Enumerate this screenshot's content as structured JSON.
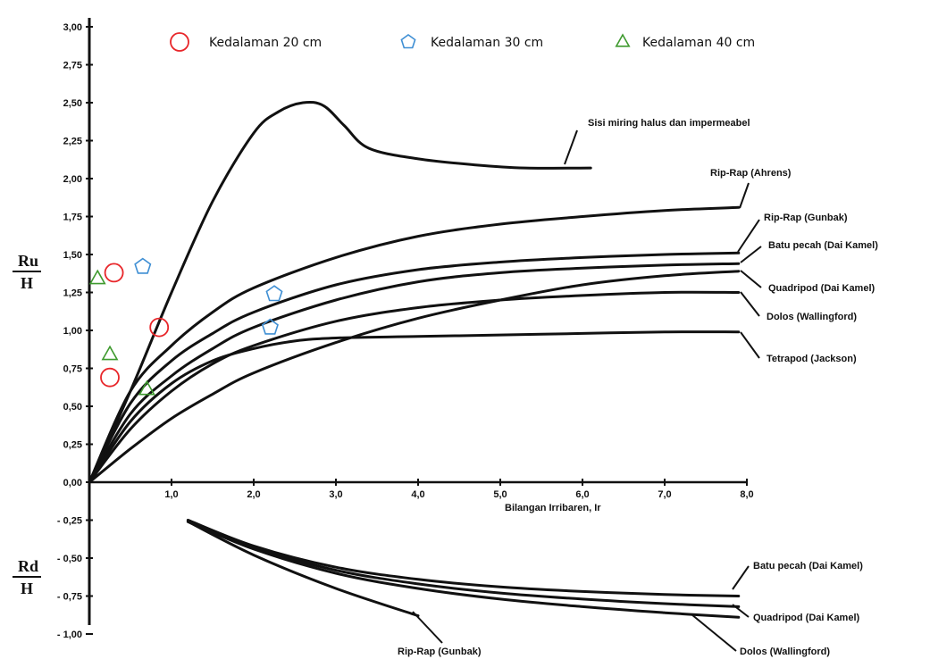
{
  "chart_data": {
    "type": "line",
    "xlabel": "Bilangan Irribaren, Ir",
    "ylabel_top": {
      "num": "Ru",
      "den": "H"
    },
    "ylabel_bottom": {
      "num": "Rd",
      "den": "H"
    },
    "xlim": [
      0,
      8
    ],
    "ylim": [
      -1.0,
      3.0
    ],
    "x_ticks": [
      "1,0",
      "2,0",
      "3,0",
      "4,0",
      "5,0",
      "6,0",
      "7,0",
      "8,0"
    ],
    "x_tick_values": [
      1,
      2,
      3,
      4,
      5,
      6,
      7,
      8
    ],
    "y_ticks": [
      "3,00",
      "2,75",
      "2,50",
      "2,25",
      "2,00",
      "1,75",
      "1,50",
      "1,25",
      "1,00",
      "0,75",
      "0,50",
      "0,25",
      "0,00",
      "- 0,25",
      "- 0,50",
      "- 0,75",
      "- 1,00"
    ],
    "y_tick_values": [
      3.0,
      2.75,
      2.5,
      2.25,
      2.0,
      1.75,
      1.5,
      1.25,
      1.0,
      0.75,
      0.5,
      0.25,
      0.0,
      -0.25,
      -0.5,
      -0.75,
      -1.0
    ],
    "grid": false,
    "legend": {
      "placement": "top",
      "items": [
        {
          "label": "Kedalaman 20 cm",
          "marker": "circle",
          "color": "#e8262a"
        },
        {
          "label": "Kedalaman 30 cm",
          "marker": "pentagon",
          "color": "#3f8fd4"
        },
        {
          "label": "Kedalaman 40 cm",
          "marker": "triangle",
          "color": "#3f9a2f"
        }
      ]
    },
    "curves": [
      {
        "label": "Sisi miring halus dan impermeabel",
        "x": [
          0,
          0.5,
          1.0,
          1.5,
          2.0,
          2.3,
          2.6,
          2.85,
          3.1,
          3.4,
          4.0,
          4.7,
          5.3,
          6.1
        ],
        "y": [
          0,
          0.6,
          1.25,
          1.85,
          2.3,
          2.44,
          2.5,
          2.48,
          2.35,
          2.2,
          2.13,
          2.09,
          2.07,
          2.07
        ]
      },
      {
        "label": "Rip-Rap (Ahrens)",
        "x": [
          0,
          0.5,
          1,
          1.5,
          2,
          3,
          4,
          5,
          6,
          7,
          7.9
        ],
        "y": [
          0,
          0.6,
          0.9,
          1.12,
          1.28,
          1.48,
          1.62,
          1.7,
          1.75,
          1.79,
          1.81
        ]
      },
      {
        "label": "Rip-Rap (Gunbak)",
        "x": [
          0,
          0.5,
          1,
          1.5,
          2,
          3,
          4,
          5,
          6,
          7,
          7.9
        ],
        "y": [
          0,
          0.52,
          0.8,
          0.98,
          1.12,
          1.3,
          1.4,
          1.45,
          1.48,
          1.5,
          1.51
        ]
      },
      {
        "label": "Batu pecah (Dai Kamel)",
        "x": [
          0,
          0.5,
          1,
          1.5,
          2,
          3,
          4,
          5,
          6,
          7,
          7.9
        ],
        "y": [
          0,
          0.45,
          0.7,
          0.88,
          1.02,
          1.2,
          1.32,
          1.38,
          1.41,
          1.43,
          1.44
        ]
      },
      {
        "label": "Quadripod (Dai Kamel)",
        "x": [
          0,
          0.5,
          1,
          1.5,
          2,
          3,
          4,
          5,
          6,
          7,
          7.9
        ],
        "y": [
          0,
          0.22,
          0.42,
          0.58,
          0.72,
          0.92,
          1.08,
          1.2,
          1.3,
          1.36,
          1.39
        ]
      },
      {
        "label": "Dolos (Wallingford)",
        "x": [
          0,
          0.5,
          1,
          1.5,
          2,
          3,
          4,
          5,
          6,
          7,
          7.9
        ],
        "y": [
          0,
          0.35,
          0.6,
          0.78,
          0.9,
          1.06,
          1.15,
          1.2,
          1.23,
          1.25,
          1.25
        ]
      },
      {
        "label": "Tetrapod (Jackson)",
        "x": [
          0,
          0.5,
          1,
          1.5,
          2,
          2.5,
          3,
          4,
          5,
          6,
          7,
          7.9
        ],
        "y": [
          0,
          0.4,
          0.65,
          0.8,
          0.88,
          0.93,
          0.95,
          0.96,
          0.97,
          0.98,
          0.99,
          0.99
        ]
      },
      {
        "label": "Batu pecah (Dai Kamel)",
        "x": [
          1.2,
          2,
          3,
          4,
          5,
          6,
          7,
          7.9
        ],
        "y": [
          -0.25,
          -0.42,
          -0.56,
          -0.64,
          -0.69,
          -0.72,
          -0.74,
          -0.75
        ]
      },
      {
        "label": "Quadripod (Dai Kamel)",
        "x": [
          1.2,
          2,
          3,
          4,
          5,
          6,
          7,
          7.9
        ],
        "y": [
          -0.25,
          -0.43,
          -0.58,
          -0.67,
          -0.73,
          -0.77,
          -0.8,
          -0.82
        ]
      },
      {
        "label": "Dolos (Wallingford)",
        "x": [
          1.2,
          2,
          3,
          4,
          5,
          6,
          7,
          7.9
        ],
        "y": [
          -0.26,
          -0.44,
          -0.6,
          -0.7,
          -0.77,
          -0.82,
          -0.86,
          -0.89
        ]
      },
      {
        "label": "Rip-Rap (Gunbak)",
        "x": [
          1.2,
          2,
          3,
          4.0
        ],
        "y": [
          -0.26,
          -0.48,
          -0.7,
          -0.88
        ]
      }
    ],
    "series": [
      {
        "name": "Kedalaman 20 cm",
        "marker": "circle",
        "color": "#e8262a",
        "points": [
          [
            0.3,
            1.38
          ],
          [
            0.25,
            0.69
          ],
          [
            0.85,
            1.02
          ]
        ]
      },
      {
        "name": "Kedalaman 30 cm",
        "marker": "pentagon",
        "color": "#3f8fd4",
        "points": [
          [
            0.65,
            1.42
          ],
          [
            2.25,
            1.24
          ],
          [
            2.2,
            1.02
          ]
        ]
      },
      {
        "name": "Kedalaman 40 cm",
        "marker": "triangle",
        "color": "#3f9a2f",
        "points": [
          [
            0.1,
            1.34
          ],
          [
            0.25,
            0.84
          ],
          [
            0.7,
            0.61
          ]
        ]
      }
    ]
  }
}
